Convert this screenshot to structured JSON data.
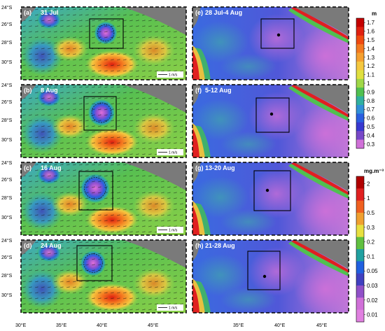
{
  "left_panels": [
    {
      "label": "(a)",
      "date": "31 Jul",
      "scale_label": "1 m/s"
    },
    {
      "label": "(b)",
      "date": "8 Aug",
      "scale_label": "1 m/s"
    },
    {
      "label": "(c)",
      "date": "16 Aug",
      "scale_label": "1 m/s"
    },
    {
      "label": "(d)",
      "date": "24 Aug",
      "scale_label": "1 m/s"
    }
  ],
  "right_panels": [
    {
      "label": "(e)",
      "date": "28 Jul-4 Aug"
    },
    {
      "label": "(f)",
      "date": "5-12 Aug"
    },
    {
      "label": "(g)",
      "date": "13-20 Aug"
    },
    {
      "label": "(h)",
      "date": "21-28 Aug"
    }
  ],
  "lat_labels": [
    "24°S",
    "26°S",
    "28°S",
    "30°S"
  ],
  "left_lon_labels": [
    "30°E",
    "35°E",
    "40°E",
    "45°E"
  ],
  "right_lon_labels": [
    "35°E",
    "40°E",
    "45°E"
  ],
  "colorbar_top": {
    "unit": "m",
    "ticks": [
      "1.7",
      "1.6",
      "1.5",
      "1.4",
      "1.3",
      "1.2",
      "1.1",
      "1",
      "0.9",
      "0.8",
      "0.7",
      "0.6",
      "0.5",
      "0.4",
      "0.3"
    ],
    "colors": [
      "#c40000",
      "#e02010",
      "#f04a10",
      "#f47a20",
      "#f5a030",
      "#f5c840",
      "#e0e040",
      "#a0d848",
      "#50c050",
      "#30b0a0",
      "#3090d8",
      "#2a5ee0",
      "#3838d0",
      "#7848c8",
      "#d070d8"
    ]
  },
  "colorbar_bottom": {
    "unit": "mg.m⁻³",
    "ticks": [
      "2",
      "1",
      "0.5",
      "0.3",
      "0.2",
      "0.1",
      "0.05",
      "0.03",
      "0.02",
      "0.01"
    ],
    "colors": [
      "#b00000",
      "#e02020",
      "#f06020",
      "#f0a030",
      "#e8e040",
      "#60c040",
      "#20a0a0",
      "#2060e0",
      "#4040c0",
      "#9050c8",
      "#d070d8",
      "#e080e0"
    ]
  }
}
